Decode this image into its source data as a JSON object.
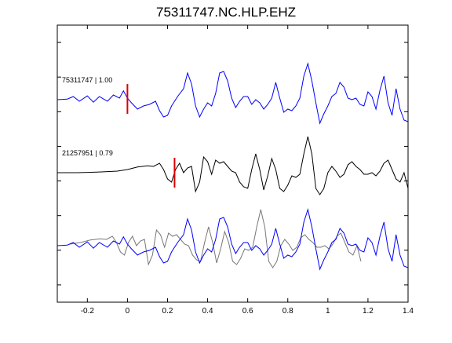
{
  "chart_data": {
    "type": "line",
    "title": "75311747.NC.HLP.EHZ",
    "xlabel": "",
    "ylabel": "",
    "xlim": [
      -0.35,
      1.4
    ],
    "x_ticks": [
      {
        "value": -0.2,
        "label": "-0.2"
      },
      {
        "value": 0,
        "label": "0"
      },
      {
        "value": 0.2,
        "label": "0.2"
      },
      {
        "value": 0.4,
        "label": "0.4"
      },
      {
        "value": 0.6,
        "label": "0.6"
      },
      {
        "value": 0.8,
        "label": "0.8"
      },
      {
        "value": 1,
        "label": "1"
      },
      {
        "value": 1.2,
        "label": "1.2"
      },
      {
        "value": 1.4,
        "label": "1.4"
      }
    ],
    "y_tick_count": 8,
    "grid": false,
    "colors": {
      "primary": "#0000ff",
      "secondary": "#000000",
      "overlay_secondary": "#777777",
      "pick": "#dd0000"
    },
    "traces": [
      {
        "label": "75311747 | 1.00",
        "pick_time": 0.0,
        "color": "#0000ff",
        "series": [
          [
            -0.35,
            0
          ],
          [
            -0.3,
            0.02
          ],
          [
            -0.27,
            0.1
          ],
          [
            -0.24,
            -0.05
          ],
          [
            -0.2,
            0.12
          ],
          [
            -0.17,
            -0.08
          ],
          [
            -0.14,
            0.1
          ],
          [
            -0.1,
            -0.05
          ],
          [
            -0.07,
            0.15
          ],
          [
            -0.04,
            0.05
          ],
          [
            -0.02,
            0.28
          ],
          [
            0.0,
            0.05
          ],
          [
            0.02,
            -0.1
          ],
          [
            0.05,
            -0.3
          ],
          [
            0.08,
            -0.2
          ],
          [
            0.11,
            -0.15
          ],
          [
            0.14,
            -0.05
          ],
          [
            0.16,
            -0.35
          ],
          [
            0.18,
            -0.55
          ],
          [
            0.2,
            -0.5
          ],
          [
            0.22,
            -0.2
          ],
          [
            0.25,
            0.1
          ],
          [
            0.28,
            0.35
          ],
          [
            0.3,
            0.85
          ],
          [
            0.32,
            0.5
          ],
          [
            0.34,
            -0.2
          ],
          [
            0.36,
            -0.55
          ],
          [
            0.38,
            -0.3
          ],
          [
            0.4,
            -0.1
          ],
          [
            0.42,
            -0.2
          ],
          [
            0.44,
            0.2
          ],
          [
            0.46,
            0.85
          ],
          [
            0.48,
            0.9
          ],
          [
            0.5,
            0.6
          ],
          [
            0.52,
            0.05
          ],
          [
            0.54,
            -0.25
          ],
          [
            0.56,
            -0.05
          ],
          [
            0.58,
            0.1
          ],
          [
            0.6,
            0.1
          ],
          [
            0.62,
            -0.15
          ],
          [
            0.64,
            0.0
          ],
          [
            0.66,
            -0.1
          ],
          [
            0.68,
            -0.3
          ],
          [
            0.7,
            -0.15
          ],
          [
            0.72,
            0.05
          ],
          [
            0.74,
            0.55
          ],
          [
            0.76,
            0.05
          ],
          [
            0.78,
            -0.4
          ],
          [
            0.8,
            -0.3
          ],
          [
            0.82,
            -0.35
          ],
          [
            0.84,
            -0.2
          ],
          [
            0.86,
            0.05
          ],
          [
            0.88,
            0.75
          ],
          [
            0.9,
            1.15
          ],
          [
            0.92,
            0.6
          ],
          [
            0.94,
            -0.1
          ],
          [
            0.96,
            -0.75
          ],
          [
            0.98,
            -0.45
          ],
          [
            1.0,
            -0.2
          ],
          [
            1.02,
            0.1
          ],
          [
            1.04,
            0.2
          ],
          [
            1.06,
            0.55
          ],
          [
            1.08,
            0.4
          ],
          [
            1.1,
            0.05
          ],
          [
            1.12,
            0.0
          ],
          [
            1.14,
            0.05
          ],
          [
            1.16,
            -0.15
          ],
          [
            1.18,
            -0.2
          ],
          [
            1.2,
            0.25
          ],
          [
            1.22,
            0.1
          ],
          [
            1.24,
            -0.3
          ],
          [
            1.26,
            0.3
          ],
          [
            1.28,
            0.75
          ],
          [
            1.3,
            -0.1
          ],
          [
            1.32,
            -0.5
          ],
          [
            1.34,
            0.35
          ],
          [
            1.36,
            -0.3
          ],
          [
            1.38,
            -0.65
          ],
          [
            1.4,
            -0.7
          ]
        ]
      },
      {
        "label": "21257951 | 0.79",
        "pick_time": 0.235,
        "color": "#000000",
        "series": [
          [
            -0.35,
            0
          ],
          [
            -0.25,
            0.0
          ],
          [
            -0.15,
            0.02
          ],
          [
            -0.05,
            0.05
          ],
          [
            0.0,
            0.1
          ],
          [
            0.05,
            0.18
          ],
          [
            0.1,
            0.22
          ],
          [
            0.13,
            0.2
          ],
          [
            0.16,
            0.3
          ],
          [
            0.18,
            0.1
          ],
          [
            0.2,
            -0.2
          ],
          [
            0.22,
            -0.3
          ],
          [
            0.24,
            0.1
          ],
          [
            0.26,
            0.3
          ],
          [
            0.28,
            0.0
          ],
          [
            0.3,
            0.15
          ],
          [
            0.32,
            0.2
          ],
          [
            0.34,
            -0.6
          ],
          [
            0.36,
            -0.3
          ],
          [
            0.38,
            0.5
          ],
          [
            0.4,
            0.35
          ],
          [
            0.42,
            -0.05
          ],
          [
            0.44,
            0.4
          ],
          [
            0.46,
            0.3
          ],
          [
            0.48,
            0.35
          ],
          [
            0.5,
            0.2
          ],
          [
            0.52,
            0.05
          ],
          [
            0.54,
            0.0
          ],
          [
            0.56,
            -0.3
          ],
          [
            0.58,
            -0.45
          ],
          [
            0.6,
            -0.5
          ],
          [
            0.62,
            0.1
          ],
          [
            0.64,
            0.6
          ],
          [
            0.66,
            0.1
          ],
          [
            0.68,
            -0.55
          ],
          [
            0.7,
            -0.1
          ],
          [
            0.72,
            0.45
          ],
          [
            0.74,
            0.1
          ],
          [
            0.76,
            -0.5
          ],
          [
            0.78,
            -0.6
          ],
          [
            0.8,
            -0.4
          ],
          [
            0.82,
            -0.1
          ],
          [
            0.84,
            -0.15
          ],
          [
            0.86,
            -0.05
          ],
          [
            0.88,
            0.6
          ],
          [
            0.9,
            1.15
          ],
          [
            0.92,
            0.6
          ],
          [
            0.94,
            -0.5
          ],
          [
            0.96,
            -0.7
          ],
          [
            0.98,
            -0.5
          ],
          [
            1.0,
            0.0
          ],
          [
            1.02,
            0.2
          ],
          [
            1.04,
            0.05
          ],
          [
            1.06,
            -0.15
          ],
          [
            1.08,
            -0.05
          ],
          [
            1.1,
            0.25
          ],
          [
            1.12,
            0.35
          ],
          [
            1.14,
            0.2
          ],
          [
            1.16,
            0.1
          ],
          [
            1.18,
            -0.05
          ],
          [
            1.2,
            -0.05
          ],
          [
            1.22,
            0.0
          ],
          [
            1.24,
            -0.1
          ],
          [
            1.26,
            0.05
          ],
          [
            1.28,
            0.3
          ],
          [
            1.3,
            0.4
          ],
          [
            1.32,
            0.1
          ],
          [
            1.34,
            -0.2
          ],
          [
            1.36,
            -0.3
          ],
          [
            1.38,
            0.0
          ],
          [
            1.4,
            -0.5
          ]
        ]
      }
    ]
  }
}
